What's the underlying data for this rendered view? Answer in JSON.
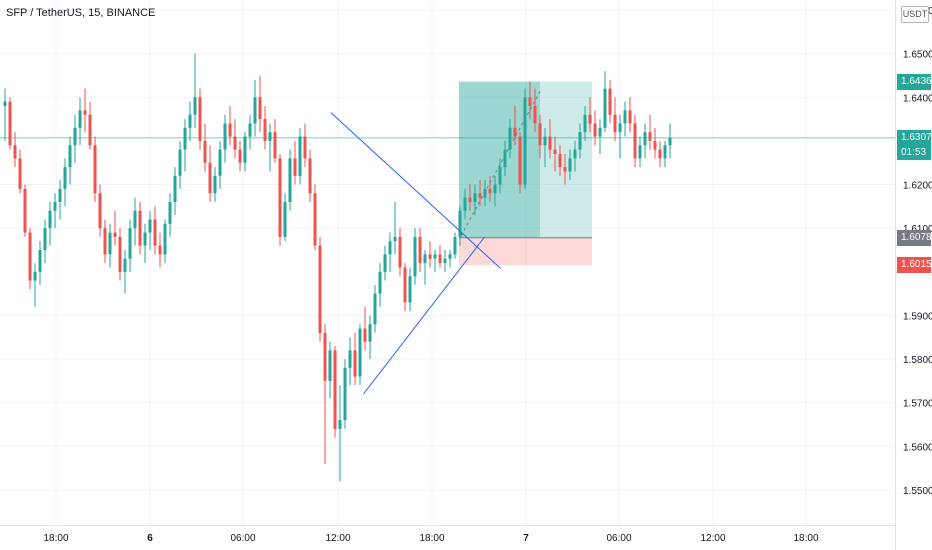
{
  "header": {
    "title": "SFP / TetherUS, 15, BINANCE",
    "currency": "USDT"
  },
  "chart_data": {
    "type": "candlestick",
    "symbol": "SFP / TetherUS",
    "interval": "15",
    "exchange": "BINANCE",
    "ylim": [
      1.5425,
      1.6625
    ],
    "y_ticks": [
      "1.6600",
      "1.6500",
      "1.6400",
      "1.6200",
      "1.6100",
      "1.5900",
      "1.5800",
      "1.5700",
      "1.5600",
      "1.5500"
    ],
    "x_ticks": [
      {
        "label": "18:00",
        "bold": false
      },
      {
        "label": "6",
        "bold": true
      },
      {
        "label": "06:00",
        "bold": false
      },
      {
        "label": "12:00",
        "bold": false
      },
      {
        "label": "18:00",
        "bold": false
      },
      {
        "label": "7",
        "bold": true
      },
      {
        "label": "06:00",
        "bold": false
      },
      {
        "label": "12:00",
        "bold": false
      },
      {
        "label": "18:00",
        "bold": false
      }
    ],
    "candles": [
      [
        1.638,
        1.642,
        1.63,
        1.639
      ],
      [
        1.639,
        1.64,
        1.628,
        1.629
      ],
      [
        1.629,
        1.632,
        1.624,
        1.626
      ],
      [
        1.626,
        1.628,
        1.618,
        1.619
      ],
      [
        1.619,
        1.62,
        1.608,
        1.609
      ],
      [
        1.609,
        1.61,
        1.596,
        1.598
      ],
      [
        1.598,
        1.602,
        1.592,
        1.6
      ],
      [
        1.6,
        1.607,
        1.597,
        1.605
      ],
      [
        1.605,
        1.612,
        1.602,
        1.61
      ],
      [
        1.61,
        1.616,
        1.606,
        1.614
      ],
      [
        1.614,
        1.618,
        1.61,
        1.616
      ],
      [
        1.616,
        1.621,
        1.612,
        1.619
      ],
      [
        1.619,
        1.626,
        1.615,
        1.624
      ],
      [
        1.624,
        1.631,
        1.62,
        1.629
      ],
      [
        1.629,
        1.636,
        1.625,
        1.633
      ],
      [
        1.633,
        1.64,
        1.629,
        1.637
      ],
      [
        1.637,
        1.642,
        1.632,
        1.636
      ],
      [
        1.636,
        1.639,
        1.628,
        1.629
      ],
      [
        1.629,
        1.631,
        1.616,
        1.618
      ],
      [
        1.618,
        1.62,
        1.608,
        1.61
      ],
      [
        1.61,
        1.612,
        1.602,
        1.604
      ],
      [
        1.604,
        1.611,
        1.601,
        1.609
      ],
      [
        1.609,
        1.614,
        1.606,
        1.608
      ],
      [
        1.608,
        1.61,
        1.598,
        1.6
      ],
      [
        1.6,
        1.605,
        1.595,
        1.603
      ],
      [
        1.603,
        1.612,
        1.6,
        1.61
      ],
      [
        1.61,
        1.617,
        1.606,
        1.614
      ],
      [
        1.614,
        1.616,
        1.604,
        1.606
      ],
      [
        1.606,
        1.611,
        1.602,
        1.609
      ],
      [
        1.609,
        1.614,
        1.605,
        1.612
      ],
      [
        1.612,
        1.615,
        1.604,
        1.606
      ],
      [
        1.606,
        1.609,
        1.601,
        1.604
      ],
      [
        1.604,
        1.612,
        1.602,
        1.611
      ],
      [
        1.611,
        1.618,
        1.608,
        1.616
      ],
      [
        1.616,
        1.624,
        1.613,
        1.622
      ],
      [
        1.622,
        1.63,
        1.619,
        1.628
      ],
      [
        1.628,
        1.635,
        1.623,
        1.633
      ],
      [
        1.633,
        1.639,
        1.63,
        1.636
      ],
      [
        1.636,
        1.65,
        1.633,
        1.64
      ],
      [
        1.64,
        1.642,
        1.628,
        1.63
      ],
      [
        1.63,
        1.634,
        1.623,
        1.625
      ],
      [
        1.625,
        1.629,
        1.616,
        1.618
      ],
      [
        1.618,
        1.624,
        1.616,
        1.622
      ],
      [
        1.622,
        1.63,
        1.619,
        1.628
      ],
      [
        1.628,
        1.636,
        1.625,
        1.634
      ],
      [
        1.634,
        1.638,
        1.629,
        1.631
      ],
      [
        1.631,
        1.635,
        1.626,
        1.628
      ],
      [
        1.628,
        1.63,
        1.623,
        1.625
      ],
      [
        1.625,
        1.632,
        1.623,
        1.631
      ],
      [
        1.631,
        1.636,
        1.628,
        1.634
      ],
      [
        1.634,
        1.644,
        1.631,
        1.64
      ],
      [
        1.64,
        1.645,
        1.632,
        1.635
      ],
      [
        1.635,
        1.638,
        1.628,
        1.63
      ],
      [
        1.63,
        1.634,
        1.623,
        1.632
      ],
      [
        1.632,
        1.635,
        1.625,
        1.626
      ],
      [
        1.626,
        1.627,
        1.606,
        1.608
      ],
      [
        1.608,
        1.618,
        1.607,
        1.616
      ],
      [
        1.616,
        1.628,
        1.614,
        1.626
      ],
      [
        1.626,
        1.63,
        1.62,
        1.622
      ],
      [
        1.622,
        1.633,
        1.62,
        1.631
      ],
      [
        1.631,
        1.634,
        1.624,
        1.626
      ],
      [
        1.626,
        1.628,
        1.616,
        1.618
      ],
      [
        1.618,
        1.62,
        1.605,
        1.606
      ],
      [
        1.606,
        1.608,
        1.584,
        1.586
      ],
      [
        1.586,
        1.588,
        1.556,
        1.575
      ],
      [
        1.575,
        1.584,
        1.571,
        1.582
      ],
      [
        1.582,
        1.583,
        1.562,
        1.564
      ],
      [
        1.564,
        1.574,
        1.552,
        1.566
      ],
      [
        1.566,
        1.58,
        1.564,
        1.578
      ],
      [
        1.578,
        1.585,
        1.574,
        1.582
      ],
      [
        1.582,
        1.586,
        1.574,
        1.576
      ],
      [
        1.576,
        1.588,
        1.574,
        1.587
      ],
      [
        1.587,
        1.592,
        1.582,
        1.584
      ],
      [
        1.584,
        1.59,
        1.58,
        1.588
      ],
      [
        1.588,
        1.597,
        1.586,
        1.595
      ],
      [
        1.595,
        1.602,
        1.592,
        1.6
      ],
      [
        1.6,
        1.606,
        1.598,
        1.604
      ],
      [
        1.604,
        1.609,
        1.6,
        1.607
      ],
      [
        1.607,
        1.616,
        1.604,
        1.608
      ],
      [
        1.608,
        1.61,
        1.599,
        1.601
      ],
      [
        1.601,
        1.602,
        1.591,
        1.593
      ],
      [
        1.593,
        1.601,
        1.591,
        1.599
      ],
      [
        1.599,
        1.61,
        1.597,
        1.608
      ],
      [
        1.608,
        1.61,
        1.6,
        1.602
      ],
      [
        1.602,
        1.605,
        1.597,
        1.604
      ],
      [
        1.604,
        1.607,
        1.601,
        1.603
      ],
      [
        1.603,
        1.605,
        1.6,
        1.604
      ],
      [
        1.604,
        1.606,
        1.601,
        1.602
      ],
      [
        1.602,
        1.605,
        1.6,
        1.603
      ],
      [
        1.603,
        1.605,
        1.601,
        1.604
      ],
      [
        1.604,
        1.609,
        1.603,
        1.608
      ],
      [
        1.608,
        1.615,
        1.606,
        1.614
      ],
      [
        1.614,
        1.619,
        1.612,
        1.617
      ],
      [
        1.617,
        1.62,
        1.614,
        1.616
      ],
      [
        1.616,
        1.62,
        1.613,
        1.618
      ],
      [
        1.618,
        1.621,
        1.615,
        1.617
      ],
      [
        1.617,
        1.621,
        1.615,
        1.619
      ],
      [
        1.619,
        1.622,
        1.616,
        1.618
      ],
      [
        1.618,
        1.622,
        1.615,
        1.62
      ],
      [
        1.62,
        1.626,
        1.618,
        1.624
      ],
      [
        1.624,
        1.63,
        1.622,
        1.628
      ],
      [
        1.628,
        1.635,
        1.626,
        1.633
      ],
      [
        1.633,
        1.638,
        1.629,
        1.631
      ],
      [
        1.631,
        1.632,
        1.618,
        1.62
      ],
      [
        1.62,
        1.642,
        1.619,
        1.64
      ],
      [
        1.64,
        1.6436,
        1.635,
        1.638
      ],
      [
        1.638,
        1.642,
        1.632,
        1.634
      ],
      [
        1.634,
        1.636,
        1.626,
        1.629
      ],
      [
        1.629,
        1.633,
        1.624,
        1.631
      ],
      [
        1.631,
        1.635,
        1.626,
        1.628
      ],
      [
        1.628,
        1.631,
        1.623,
        1.627
      ],
      [
        1.627,
        1.629,
        1.622,
        1.624
      ],
      [
        1.624,
        1.627,
        1.62,
        1.623
      ],
      [
        1.623,
        1.628,
        1.621,
        1.626
      ],
      [
        1.626,
        1.63,
        1.623,
        1.628
      ],
      [
        1.628,
        1.634,
        1.626,
        1.632
      ],
      [
        1.632,
        1.638,
        1.63,
        1.636
      ],
      [
        1.636,
        1.64,
        1.632,
        1.634
      ],
      [
        1.634,
        1.637,
        1.629,
        1.631
      ],
      [
        1.631,
        1.635,
        1.627,
        1.633
      ],
      [
        1.633,
        1.646,
        1.632,
        1.642
      ],
      [
        1.642,
        1.644,
        1.634,
        1.636
      ],
      [
        1.636,
        1.64,
        1.63,
        1.632
      ],
      [
        1.632,
        1.636,
        1.626,
        1.634
      ],
      [
        1.634,
        1.639,
        1.631,
        1.637
      ],
      [
        1.637,
        1.64,
        1.632,
        1.634
      ],
      [
        1.634,
        1.636,
        1.624,
        1.626
      ],
      [
        1.626,
        1.631,
        1.624,
        1.629
      ],
      [
        1.629,
        1.634,
        1.626,
        1.632
      ],
      [
        1.632,
        1.636,
        1.628,
        1.63
      ],
      [
        1.63,
        1.633,
        1.626,
        1.628
      ],
      [
        1.628,
        1.63,
        1.624,
        1.626
      ],
      [
        1.626,
        1.63,
        1.624,
        1.629
      ],
      [
        1.629,
        1.634,
        1.626,
        1.6307
      ]
    ],
    "price_line": 1.6307,
    "position": {
      "entry": 1.6078,
      "target": 1.6436,
      "stop": 1.6015
    },
    "triangle": {
      "upper_line": [
        [
          0.355,
          1.6365
        ],
        [
          0.537,
          1.6008
        ]
      ],
      "lower_line": [
        [
          0.39,
          1.572
        ],
        [
          0.52,
          1.608
        ]
      ]
    },
    "price_tags": [
      {
        "price": 1.6436,
        "text": "1.6436",
        "color": "#26a69a"
      },
      {
        "price": 1.6307,
        "text": "1.6307",
        "sub": "01:53",
        "color": "#26a69a"
      },
      {
        "price": 1.6078,
        "text": "1.6078",
        "color": "#787b86"
      },
      {
        "price": 1.6015,
        "text": "1.6015",
        "color": "#ef5350"
      }
    ],
    "colors": {
      "up": "#26a69a",
      "down": "#ef5350",
      "price_line": "#26a69a",
      "trendline": "#2962ff"
    }
  }
}
